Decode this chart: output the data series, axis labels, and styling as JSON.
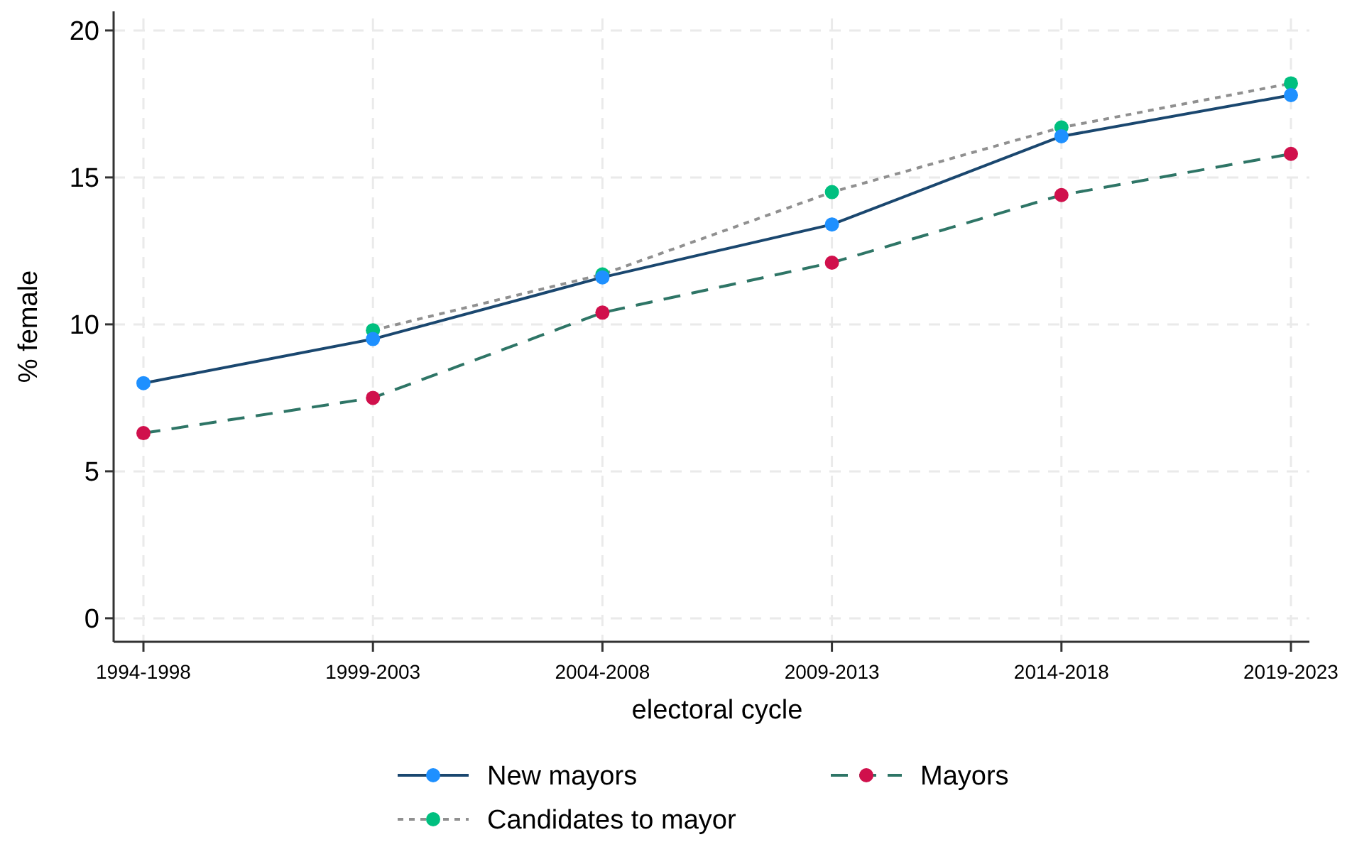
{
  "chart_data": {
    "type": "line",
    "xlabel": "electoral cycle",
    "ylabel": "% female",
    "categories": [
      "1994-1998",
      "1999-2003",
      "2004-2008",
      "2009-2013",
      "2014-2018",
      "2019-2023"
    ],
    "ylim": [
      -0.8,
      20.65
    ],
    "yticks": [
      0,
      5,
      10,
      15,
      20
    ],
    "grid": true,
    "legend": "bottom",
    "marker": "circle",
    "series": [
      {
        "name": "New mayors",
        "color": "#1a476f",
        "colors": [
          "#1e90ff",
          "#1e90ff",
          "#1e90ff",
          "#1e90ff",
          "#1e90ff",
          "#1e90ff"
        ],
        "line_style": "solid",
        "values": [
          8.0,
          9.5,
          11.6,
          13.4,
          16.4,
          17.8
        ]
      },
      {
        "name": "Mayors",
        "color": "#2e7566",
        "colors": [
          "#d0104c",
          "#d0104c",
          "#d0104c",
          "#d0104c",
          "#d0104c",
          "#d0104c"
        ],
        "line_style": "dashed",
        "values": [
          6.3,
          7.5,
          10.4,
          12.1,
          14.4,
          15.8
        ]
      },
      {
        "name": "Candidates to mayor",
        "color": "#909090",
        "colors": [
          null,
          "#00bf7f",
          "#00bf7f",
          "#00bf7f",
          "#00bf7f",
          "#00bf7f"
        ],
        "line_style": "dotted",
        "values": [
          null,
          9.8,
          11.7,
          14.5,
          16.7,
          18.2
        ]
      }
    ]
  }
}
